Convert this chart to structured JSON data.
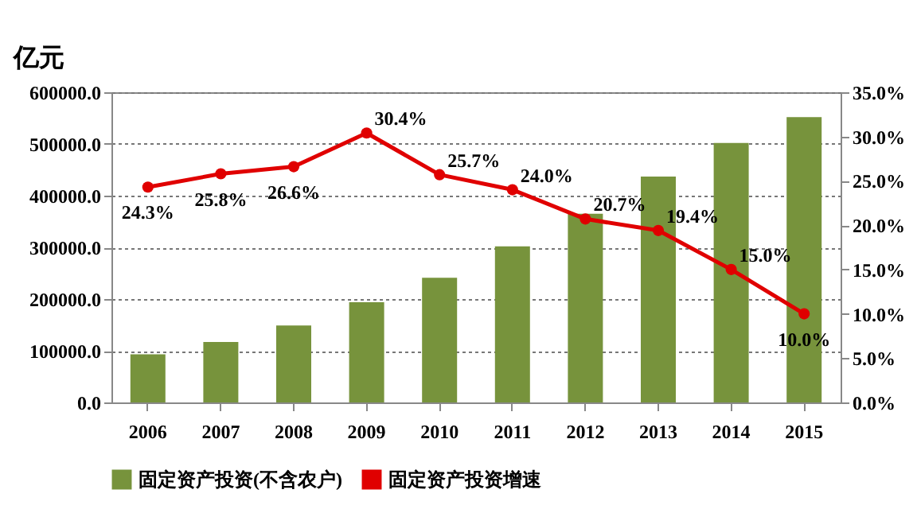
{
  "chart_data": {
    "type": "bar",
    "ylabel": "亿元",
    "categories": [
      "2006",
      "2007",
      "2008",
      "2009",
      "2010",
      "2011",
      "2012",
      "2013",
      "2014",
      "2015"
    ],
    "series": [
      {
        "name": "固定资产投资(不含农户)",
        "color": "#77933c",
        "values": [
          93000,
          117000,
          149000,
          194000,
          241000,
          302000,
          365000,
          437000,
          502000,
          552000
        ]
      },
      {
        "name": "固定资产投资增速",
        "type": "line",
        "axis": "y2",
        "color": "#e00000",
        "marker": "circle",
        "values": [
          24.3,
          25.8,
          26.6,
          30.4,
          25.7,
          24.0,
          20.7,
          19.4,
          15.0,
          10.0
        ],
        "value_labels": [
          "24.3%",
          "25.8%",
          "26.6%",
          "30.4%",
          "25.7%",
          "24.0%",
          "20.7%",
          "19.4%",
          "15.0%",
          "10.0%"
        ]
      }
    ],
    "ylim": [
      0,
      600000
    ],
    "yticks": [
      {
        "value": 0,
        "label": "0.0"
      },
      {
        "value": 100000,
        "label": "100000.0"
      },
      {
        "value": 200000,
        "label": "200000.0"
      },
      {
        "value": 300000,
        "label": "300000.0"
      },
      {
        "value": 400000,
        "label": "400000.0"
      },
      {
        "value": 500000,
        "label": "500000.0"
      },
      {
        "value": 600000,
        "label": "600000.0"
      }
    ],
    "y2lim": [
      0,
      35
    ],
    "y2ticks": [
      {
        "value": 0,
        "label": "0.0%"
      },
      {
        "value": 5,
        "label": "5.0%"
      },
      {
        "value": 10,
        "label": "10.0%"
      },
      {
        "value": 15,
        "label": "15.0%"
      },
      {
        "value": 20,
        "label": "20.0%"
      },
      {
        "value": 25,
        "label": "25.0%"
      },
      {
        "value": 30,
        "label": "30.0%"
      },
      {
        "value": 35,
        "label": "35.0%"
      }
    ],
    "grid": "y",
    "legend": "bottom"
  }
}
